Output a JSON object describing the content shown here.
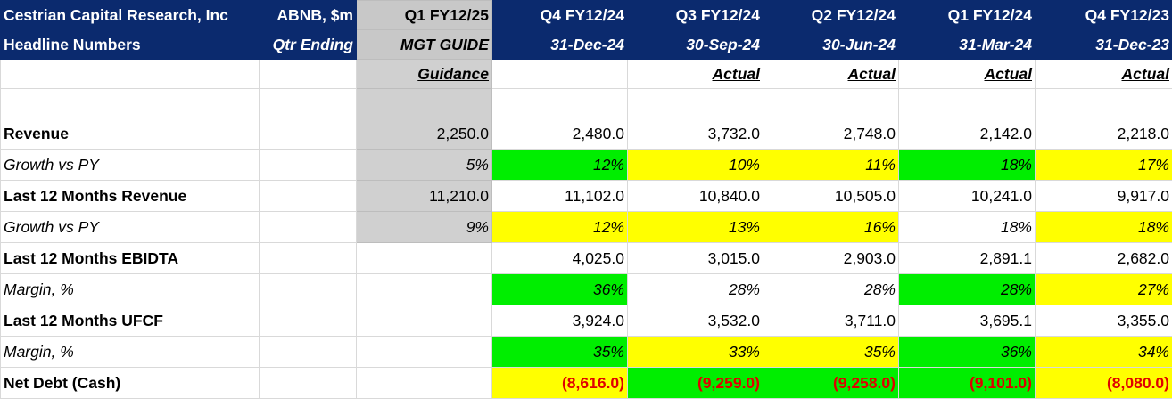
{
  "header": {
    "row1": [
      "Cestrian Capital Research, Inc",
      "ABNB, $m",
      "Q1 FY12/25",
      "Q4 FY12/24",
      "Q3 FY12/24",
      "Q2 FY12/24",
      "Q1 FY12/24",
      "Q4 FY12/23"
    ],
    "row2": [
      "Headline Numbers",
      "Qtr Ending",
      "MGT GUIDE",
      "31-Dec-24",
      "30-Sep-24",
      "30-Jun-24",
      "31-Mar-24",
      "31-Dec-23"
    ]
  },
  "type_row": [
    "",
    "",
    "Guidance",
    "",
    "Actual",
    "Actual",
    "Actual",
    "Actual"
  ],
  "rows": [
    {
      "label": "Revenue",
      "values": [
        "2,250.0",
        "2,480.0",
        "3,732.0",
        "2,748.0",
        "2,142.0",
        "2,218.0"
      ]
    },
    {
      "label": "Growth vs PY",
      "values": [
        "5%",
        "12%",
        "10%",
        "11%",
        "18%",
        "17%"
      ]
    },
    {
      "label": "Last 12 Months Revenue",
      "values": [
        "11,210.0",
        "11,102.0",
        "10,840.0",
        "10,505.0",
        "10,241.0",
        "9,917.0"
      ]
    },
    {
      "label": "Growth vs PY",
      "values": [
        "9%",
        "12%",
        "13%",
        "16%",
        "18%",
        "18%"
      ]
    },
    {
      "label": "Last 12 Months EBIDTA",
      "values": [
        "",
        "4,025.0",
        "3,015.0",
        "2,903.0",
        "2,891.1",
        "2,682.0"
      ]
    },
    {
      "label": "Margin, %",
      "values": [
        "",
        "36%",
        "28%",
        "28%",
        "28%",
        "27%"
      ]
    },
    {
      "label": "Last 12 Months UFCF",
      "values": [
        "",
        "3,924.0",
        "3,532.0",
        "3,711.0",
        "3,695.1",
        "3,355.0"
      ]
    },
    {
      "label": "Margin, %",
      "values": [
        "",
        "35%",
        "33%",
        "35%",
        "36%",
        "34%"
      ]
    },
    {
      "label": "Net Debt (Cash)",
      "values": [
        "",
        "(8,616.0)",
        "(9,259.0)",
        "(9,258.0)",
        "(9,101.0)",
        "(8,080.0)"
      ]
    }
  ],
  "colors": {
    "header_bg": "#0b2a6e",
    "guidance_bg": "#d0d0d0",
    "green": "#00ee00",
    "yellow": "#ffff00",
    "negative_text": "#e00000"
  }
}
